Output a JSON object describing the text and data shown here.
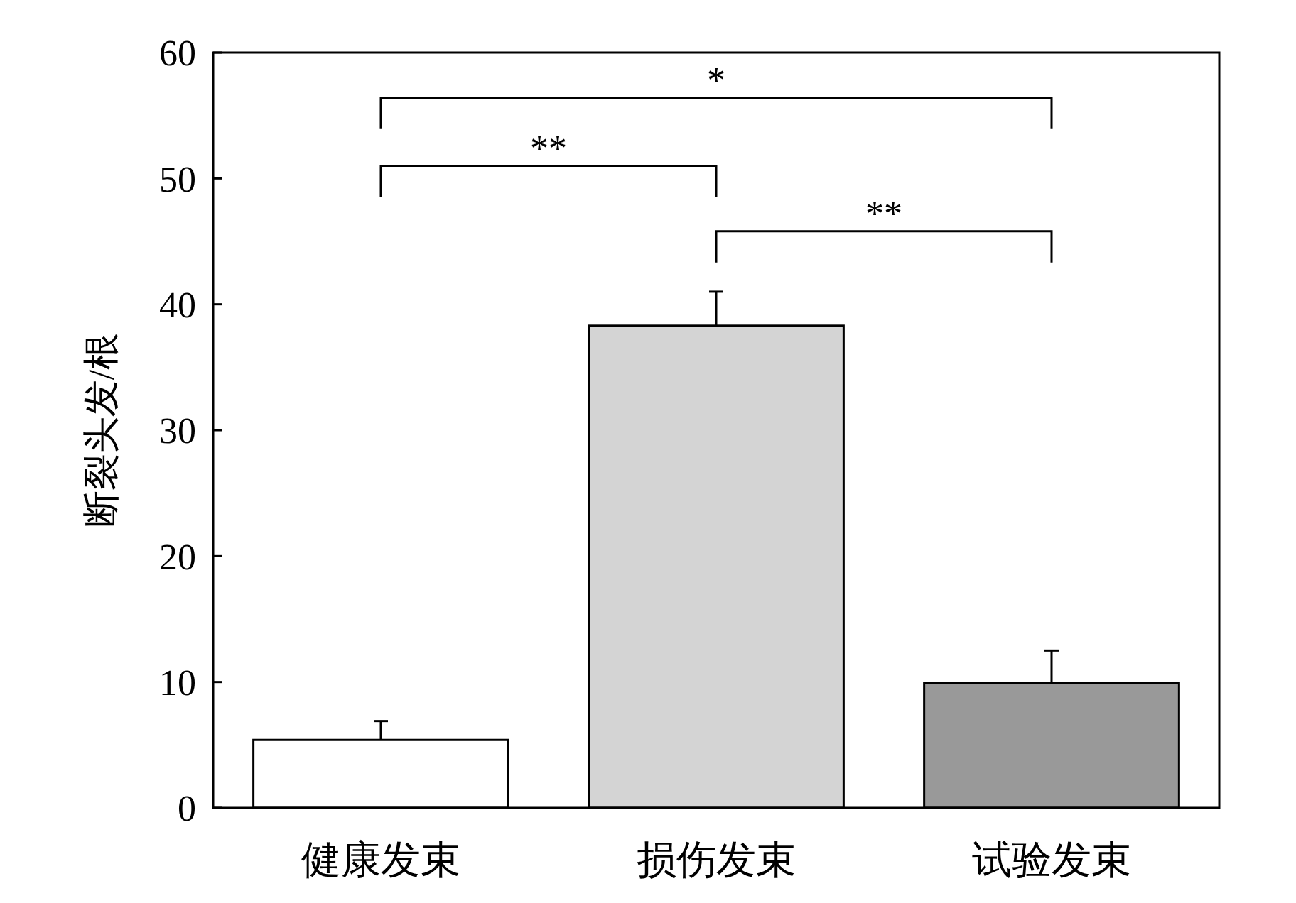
{
  "chart_data": {
    "type": "bar",
    "ylabel": "断裂头发/根",
    "categories": [
      "健康发束",
      "损伤发束",
      "试验发束"
    ],
    "values": [
      5.4,
      38.3,
      9.9
    ],
    "colors": [
      "#ffffff",
      "#d4d4d4",
      "#999999"
    ],
    "errors": [
      [
        5.4,
        6.9
      ],
      [
        38.3,
        41.0
      ],
      [
        9.9,
        12.5
      ]
    ],
    "ylim": [
      0,
      60
    ],
    "yticks": [
      0,
      10,
      20,
      30,
      40,
      50,
      60
    ],
    "annotations": [
      "*",
      "**",
      "**"
    ]
  }
}
